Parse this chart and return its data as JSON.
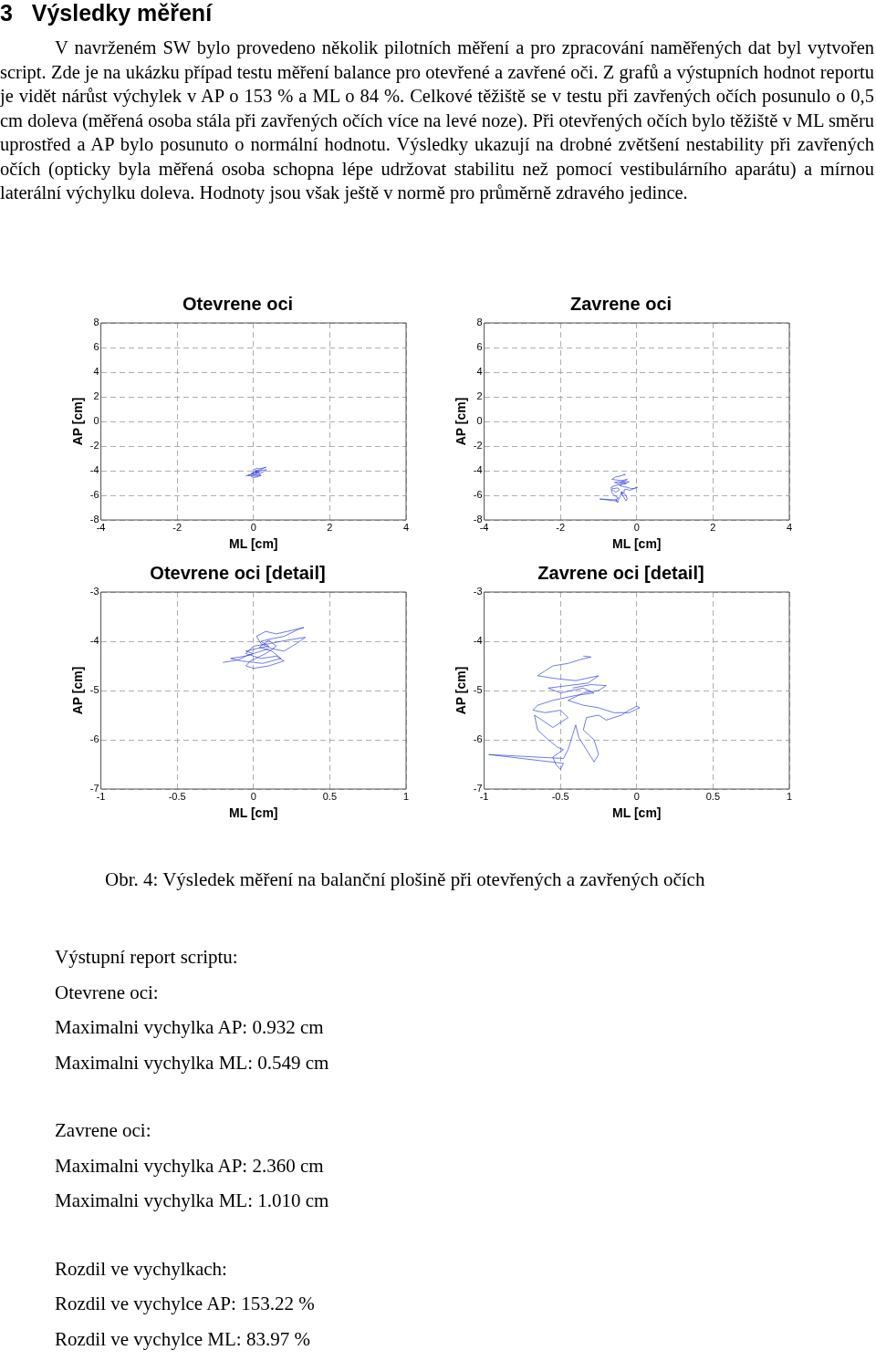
{
  "chart_data": [
    {
      "type": "line",
      "title": "Otevrene oci",
      "xlabel": "ML [cm]",
      "ylabel": "AP [cm]",
      "xlim": [
        -4,
        4
      ],
      "ylim": [
        -8,
        8
      ],
      "xticks": [
        -4,
        -2,
        0,
        2,
        4
      ],
      "yticks": [
        -8,
        -6,
        -4,
        -2,
        0,
        2,
        4,
        6,
        8
      ],
      "grid": true,
      "marker": "none",
      "line_style": "solid",
      "annotations": [
        "3   Výsledky měření",
        "V navrženém SW bylo provedeno několik pilotních měření a pro zpracování naměřených dat byl vytvořen script. Zde je na ukázku případ testu měření balance pro otevřené a zavřené oči. Z grafů a výstupních hodnot reportu je vidět nárůst výchylek v AP o 153 % a ML o 84 %. Celkové těžiště se v testu při zavřených očích posunulo o 0,5 cm doleva (měřená osoba stála při zavřených očích více na levé noze). Při otevřených očích bylo těžiště v ML směru uprostřed a AP bylo posunuto o normální hodnotu. Výsledky ukazují na drobné zvětšení nestability při zavřených očích (opticky byla měřená osoba schopna lépe udržovat stabilitu než pomocí vestibulárního aparátu) a mírnou laterální výchylku doleva. Hodnoty jsou však ještě v normě pro průměrně zdravého jedince."
      ],
      "series": [
        {
          "color": "#3344dd",
          "x": [
            -0.2,
            -0.1,
            -0.05,
            0.0,
            -0.05,
            0.02,
            0.1,
            0.05,
            0.12,
            0.2,
            0.3,
            0.33,
            0.25,
            0.15,
            0.08,
            0.02,
            0.05,
            0.12,
            0.2,
            0.28,
            0.34,
            0.22,
            0.1,
            0.0,
            -0.05,
            0.05,
            0.15,
            0.2,
            0.1,
            0.0,
            -0.05,
            -0.02,
            0.08,
            0.15,
            0.1,
            0.04,
            0.12,
            0.18,
            0.06,
            -0.08,
            -0.15,
            -0.05,
            0.05,
            0.1
          ],
          "values": [
            -4.43,
            -4.38,
            -4.3,
            -4.25,
            -4.2,
            -4.15,
            -4.1,
            -4.0,
            -3.95,
            -3.9,
            -3.75,
            -3.72,
            -3.78,
            -3.85,
            -3.8,
            -3.9,
            -4.05,
            -4.15,
            -4.2,
            -4.05,
            -3.92,
            -3.98,
            -4.05,
            -4.1,
            -4.25,
            -4.35,
            -4.3,
            -4.4,
            -4.5,
            -4.55,
            -4.5,
            -4.4,
            -4.25,
            -4.1,
            -3.98,
            -4.12,
            -4.2,
            -4.35,
            -4.45,
            -4.4,
            -4.35,
            -4.3,
            -4.2,
            -4.15
          ]
        }
      ]
    },
    {
      "type": "line",
      "title": "Zavrene oci",
      "xlabel": "ML [cm]",
      "ylabel": "AP [cm]",
      "xlim": [
        -4,
        4
      ],
      "ylim": [
        -8,
        8
      ],
      "xticks": [
        -4,
        -2,
        0,
        2,
        4
      ],
      "yticks": [
        -8,
        -6,
        -4,
        -2,
        0,
        2,
        4,
        6,
        8
      ],
      "grid": true,
      "marker": "none",
      "line_style": "solid",
      "series": [
        {
          "color": "#3344dd",
          "x": [
            -0.35,
            -0.3,
            -0.38,
            -0.45,
            -0.55,
            -0.6,
            -0.65,
            -0.55,
            -0.4,
            -0.25,
            -0.32,
            -0.45,
            -0.58,
            -0.5,
            -0.35,
            -0.28,
            -0.4,
            -0.55,
            -0.65,
            -0.68,
            -0.6,
            -0.5,
            -0.45,
            -0.55,
            -0.62,
            -0.67,
            -0.65,
            -0.58,
            -0.52,
            -0.48,
            -0.55,
            -0.53,
            -0.5,
            -0.48,
            -0.97,
            -0.48,
            -0.45,
            -0.42,
            -0.4,
            -0.38,
            -0.35,
            -0.3,
            -0.28,
            -0.25,
            -0.28,
            -0.35,
            -0.33,
            -0.25,
            -0.2,
            -0.15,
            -0.1,
            -0.05,
            0.0,
            0.02,
            -0.05,
            -0.15,
            -0.25,
            -0.35,
            -0.45,
            -0.35,
            -0.25,
            -0.2,
            -0.3,
            -0.42
          ],
          "values": [
            -4.3,
            -4.32,
            -4.38,
            -4.45,
            -4.5,
            -4.6,
            -4.7,
            -4.75,
            -4.8,
            -4.7,
            -4.85,
            -4.9,
            -4.95,
            -5.05,
            -4.95,
            -5.05,
            -5.1,
            -5.2,
            -5.3,
            -5.4,
            -5.45,
            -5.4,
            -5.55,
            -5.75,
            -5.6,
            -5.5,
            -5.8,
            -6.0,
            -6.15,
            -6.2,
            -6.35,
            -6.5,
            -6.6,
            -6.48,
            -6.3,
            -6.38,
            -6.2,
            -5.9,
            -5.7,
            -5.95,
            -6.1,
            -6.35,
            -6.45,
            -6.3,
            -6.0,
            -5.8,
            -5.55,
            -5.5,
            -5.6,
            -5.55,
            -5.5,
            -5.4,
            -5.32,
            -5.35,
            -5.45,
            -5.45,
            -5.35,
            -5.3,
            -5.2,
            -5.05,
            -5.0,
            -4.9,
            -4.88,
            -4.95
          ]
        }
      ]
    },
    {
      "type": "line",
      "title": "Otevrene oci [detail]",
      "xlabel": "ML [cm]",
      "ylabel": "AP [cm]",
      "xlim": [
        -1,
        1
      ],
      "ylim": [
        -7,
        -3
      ],
      "xticks": [
        -1,
        -0.5,
        0,
        0.5,
        1
      ],
      "yticks": [
        -7,
        -6,
        -5,
        -4,
        -3
      ],
      "grid": true,
      "marker": "none",
      "line_style": "solid",
      "series": [
        {
          "color": "#3344dd",
          "x": [
            -0.2,
            -0.1,
            -0.05,
            0.0,
            -0.05,
            0.02,
            0.1,
            0.05,
            0.12,
            0.2,
            0.3,
            0.33,
            0.25,
            0.15,
            0.08,
            0.02,
            0.05,
            0.12,
            0.2,
            0.28,
            0.34,
            0.22,
            0.1,
            0.0,
            -0.05,
            0.05,
            0.15,
            0.2,
            0.1,
            0.0,
            -0.05,
            -0.02,
            0.08,
            0.15,
            0.1,
            0.04,
            0.12,
            0.18,
            0.06,
            -0.08,
            -0.15,
            -0.05,
            0.05,
            0.1
          ],
          "values": [
            -4.43,
            -4.38,
            -4.3,
            -4.25,
            -4.2,
            -4.15,
            -4.1,
            -4.0,
            -3.95,
            -3.9,
            -3.75,
            -3.72,
            -3.78,
            -3.85,
            -3.8,
            -3.9,
            -4.05,
            -4.15,
            -4.2,
            -4.05,
            -3.92,
            -3.98,
            -4.05,
            -4.1,
            -4.25,
            -4.35,
            -4.3,
            -4.4,
            -4.5,
            -4.55,
            -4.5,
            -4.4,
            -4.25,
            -4.1,
            -3.98,
            -4.12,
            -4.2,
            -4.35,
            -4.45,
            -4.4,
            -4.35,
            -4.3,
            -4.2,
            -4.15
          ]
        }
      ]
    },
    {
      "type": "line",
      "title": "Zavrene oci [detail]",
      "xlabel": "ML [cm]",
      "ylabel": "AP [cm]",
      "xlim": [
        -1,
        1
      ],
      "ylim": [
        -7,
        -3
      ],
      "xticks": [
        -1,
        -0.5,
        0,
        0.5,
        1
      ],
      "yticks": [
        -7,
        -6,
        -5,
        -4,
        -3
      ],
      "grid": true,
      "marker": "none",
      "line_style": "solid",
      "annotations": [
        "Obr. 4: Výsledek měření na balanční plošině při otevřených a zavřených očích",
        "Výstupní report scriptu:",
        "Otevrene oci:",
        "Maximalni vychylka AP: 0.932 cm",
        "Maximalni vychylka ML: 0.549 cm",
        "Zavrene oci:",
        "Maximalni vychylka AP: 2.360 cm",
        "Maximalni vychylka ML: 1.010 cm",
        "Rozdil ve vychylkach:",
        "Rozdil ve vychylce AP: 153.22 %",
        "Rozdil ve vychylce ML: 83.97 %"
      ],
      "series": [
        {
          "color": "#3344dd",
          "x": [
            -0.35,
            -0.3,
            -0.38,
            -0.45,
            -0.55,
            -0.6,
            -0.65,
            -0.55,
            -0.4,
            -0.25,
            -0.32,
            -0.45,
            -0.58,
            -0.5,
            -0.35,
            -0.28,
            -0.4,
            -0.55,
            -0.65,
            -0.68,
            -0.6,
            -0.5,
            -0.45,
            -0.55,
            -0.62,
            -0.67,
            -0.65,
            -0.58,
            -0.52,
            -0.48,
            -0.55,
            -0.53,
            -0.5,
            -0.48,
            -0.97,
            -0.48,
            -0.45,
            -0.42,
            -0.4,
            -0.38,
            -0.35,
            -0.3,
            -0.28,
            -0.25,
            -0.28,
            -0.35,
            -0.33,
            -0.25,
            -0.2,
            -0.15,
            -0.1,
            -0.05,
            0.0,
            0.02,
            -0.05,
            -0.15,
            -0.25,
            -0.35,
            -0.45,
            -0.35,
            -0.25,
            -0.2,
            -0.3,
            -0.42
          ],
          "values": [
            -4.3,
            -4.32,
            -4.38,
            -4.45,
            -4.5,
            -4.6,
            -4.7,
            -4.75,
            -4.8,
            -4.7,
            -4.85,
            -4.9,
            -4.95,
            -5.05,
            -4.95,
            -5.05,
            -5.1,
            -5.2,
            -5.3,
            -5.4,
            -5.45,
            -5.4,
            -5.55,
            -5.75,
            -5.6,
            -5.5,
            -5.8,
            -6.0,
            -6.15,
            -6.2,
            -6.35,
            -6.5,
            -6.6,
            -6.48,
            -6.3,
            -6.38,
            -6.2,
            -5.9,
            -5.7,
            -5.95,
            -6.1,
            -6.35,
            -6.45,
            -6.3,
            -6.0,
            -5.8,
            -5.55,
            -5.5,
            -5.6,
            -5.55,
            -5.5,
            -5.4,
            -5.32,
            -5.35,
            -5.45,
            -5.45,
            -5.35,
            -5.3,
            -5.2,
            -5.05,
            -5.0,
            -4.9,
            -4.88,
            -4.95
          ]
        }
      ]
    }
  ]
}
